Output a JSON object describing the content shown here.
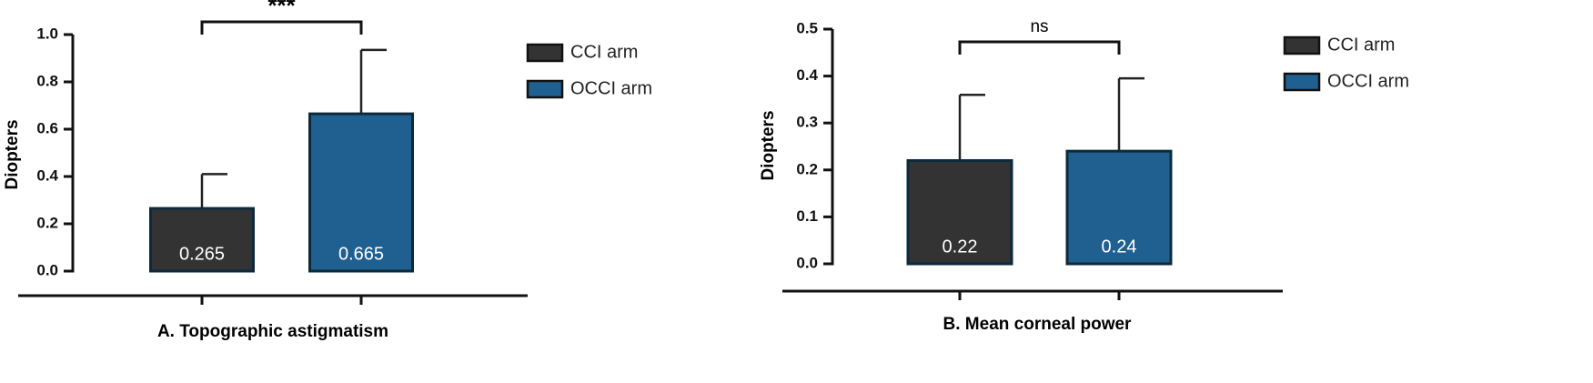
{
  "chart_data": [
    {
      "type": "bar",
      "ylabel": "Diopters",
      "xlabel": "A. Topographic astigmatism",
      "significance": "***",
      "series": [
        {
          "name": "CCI arm",
          "color": "#333333",
          "values": [
            0.265
          ],
          "errors": [
            0.145
          ]
        },
        {
          "name": "OCCI arm",
          "color": "#1f6091",
          "values": [
            0.665
          ],
          "errors": [
            0.27
          ]
        }
      ],
      "ylim": [
        0,
        1.0
      ],
      "yticks": [
        {
          "value": 0,
          "label": "0.0"
        },
        0.2,
        0.4,
        0.6,
        0.8,
        {
          "value": 1.0,
          "label": "1.0"
        }
      ],
      "legend": "right"
    },
    {
      "type": "bar",
      "ylabel": "Diopters",
      "xlabel": "B. Mean corneal power",
      "significance": "ns",
      "series": [
        {
          "name": "CCI arm",
          "color": "#333333",
          "values": [
            0.22
          ],
          "errors": [
            0.14
          ]
        },
        {
          "name": "OCCI arm",
          "color": "#1f6091",
          "values": [
            0.24
          ],
          "errors": [
            0.155
          ]
        }
      ],
      "ylim": [
        0,
        0.5
      ],
      "yticks": [
        {
          "value": 0,
          "label": "0.0"
        },
        0.1,
        0.2,
        0.3,
        0.4,
        0.5
      ],
      "legend": "right"
    }
  ]
}
